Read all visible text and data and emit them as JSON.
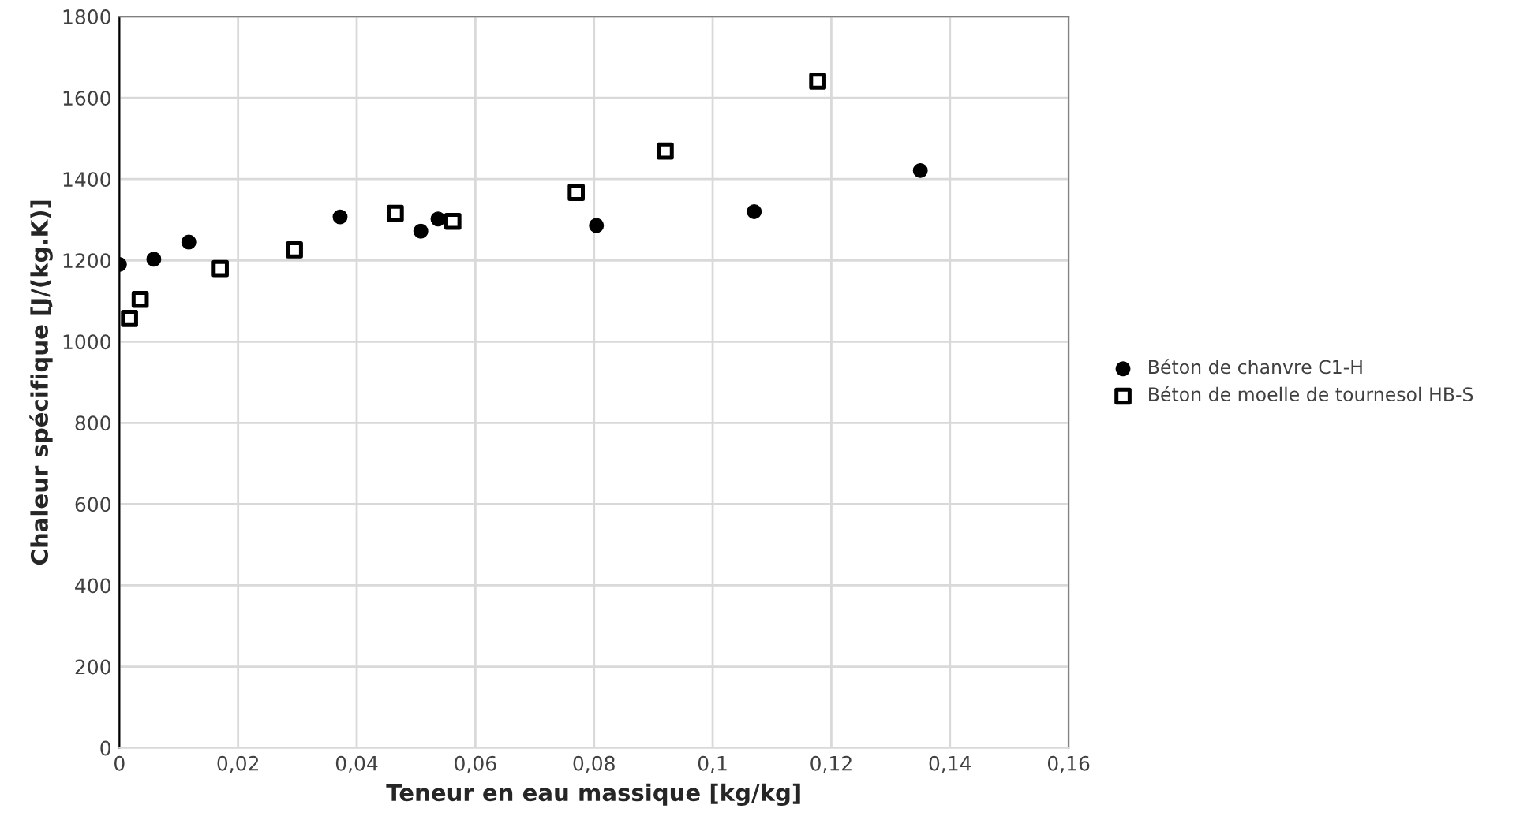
{
  "chart_data": {
    "type": "scatter",
    "xlabel": "Teneur en eau massique [kg/kg]",
    "ylabel": "Chaleur spécifique [J/(kg.K)]",
    "xlim": [
      0,
      0.16
    ],
    "ylim": [
      0,
      1800
    ],
    "xticks": [
      {
        "value": 0,
        "label": "0"
      },
      {
        "value": 0.02,
        "label": "0,02"
      },
      {
        "value": 0.04,
        "label": "0,04"
      },
      {
        "value": 0.06,
        "label": "0,06"
      },
      {
        "value": 0.08,
        "label": "0,08"
      },
      {
        "value": 0.1,
        "label": "0,1"
      },
      {
        "value": 0.12,
        "label": "0,12"
      },
      {
        "value": 0.14,
        "label": "0,14"
      },
      {
        "value": 0.16,
        "label": "0,16"
      }
    ],
    "yticks": [
      0,
      200,
      400,
      600,
      800,
      1000,
      1200,
      1400,
      1600,
      1800
    ],
    "grid": true,
    "legend": "right",
    "series": [
      {
        "name": "Béton de chanvre C1-H",
        "color": "#000000",
        "marker": "circle",
        "x": [
          0,
          0.0058,
          0.0117,
          0.0372,
          0.0508,
          0.0537,
          0.0804,
          0.107,
          0.135
        ],
        "values": [
          1190,
          1203,
          1245,
          1307,
          1272,
          1302,
          1286,
          1320,
          1421
        ]
      },
      {
        "name": "Béton de moelle de tournesol HB-S",
        "color": "#000000",
        "marker": "square",
        "x": [
          0.0017,
          0.0035,
          0.017,
          0.0295,
          0.0465,
          0.0562,
          0.077,
          0.092,
          0.1177
        ],
        "values": [
          1057,
          1104,
          1180,
          1226,
          1316,
          1296,
          1367,
          1469,
          1641
        ]
      }
    ]
  }
}
